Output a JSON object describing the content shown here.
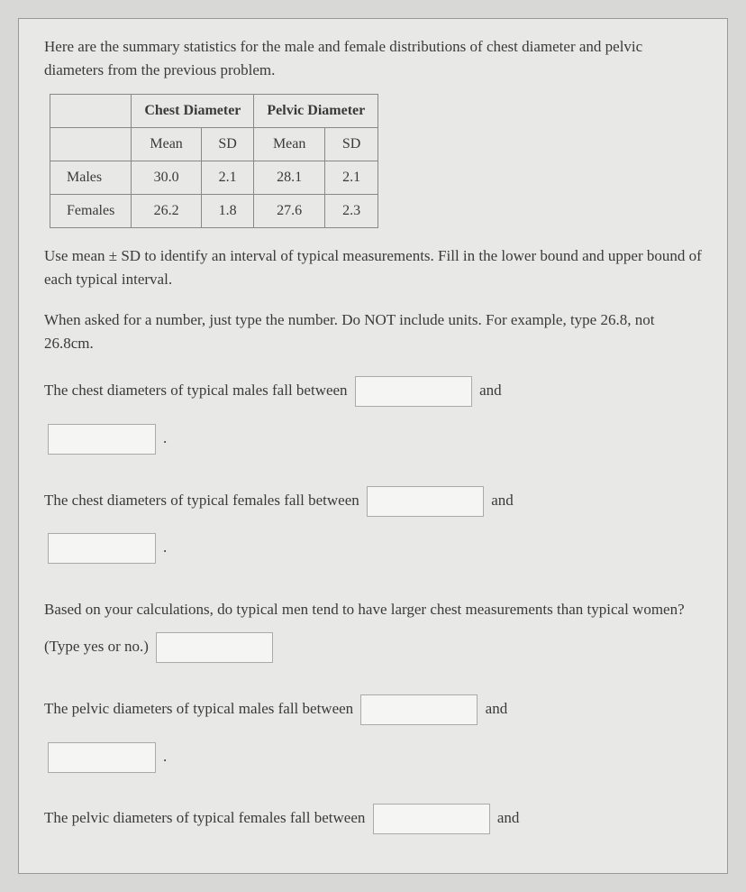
{
  "intro": "Here are the summary statistics for the male and female distributions of chest diameter and pelvic diameters from the previous problem.",
  "table": {
    "group1": "Chest Diameter",
    "group2": "Pelvic Diameter",
    "sub_mean": "Mean",
    "sub_sd": "SD",
    "rows": [
      {
        "label": "Males",
        "c_mean": "30.0",
        "c_sd": "2.1",
        "p_mean": "28.1",
        "p_sd": "2.1"
      },
      {
        "label": "Females",
        "c_mean": "26.2",
        "c_sd": "1.8",
        "p_mean": "27.6",
        "p_sd": "2.3"
      }
    ]
  },
  "instr1": "Use mean ± SD to identify an interval of typical measurements. Fill in the lower bound and upper bound of each typical interval.",
  "instr2": "When asked for a number, just type the number. Do NOT include units. For example, type 26.8, not 26.8cm.",
  "q": {
    "male_chest_pre": "The chest diameters of typical males fall between",
    "female_chest_pre": "The chest diameters of typical females fall between",
    "compare_pre": "Based on your calculations, do typical men tend to have larger chest measurements than typical women? (Type yes or no.)",
    "male_pelvic_pre": "The pelvic diameters of typical males fall between",
    "female_pelvic_pre": "The pelvic diameters of typical females fall between",
    "and": "and",
    "period": "."
  }
}
